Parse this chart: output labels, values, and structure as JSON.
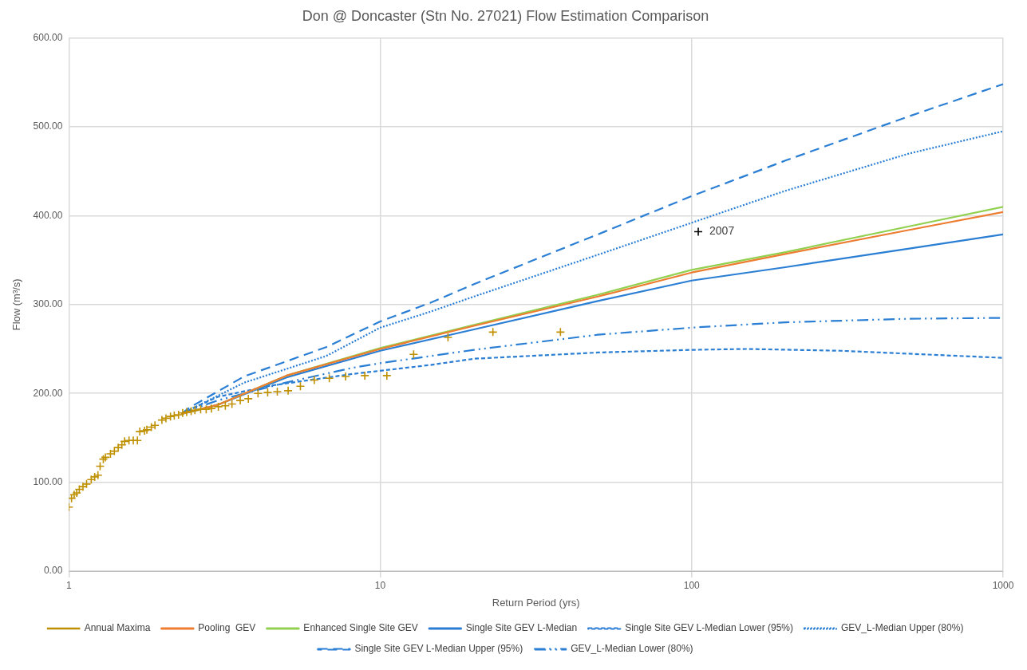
{
  "chart_data": {
    "type": "line",
    "title": "Don @ Doncaster (Stn No. 27021) Flow Estimation Comparison",
    "xlabel": "Return Period (yrs)",
    "ylabel": "Flow (m³/s)",
    "log": "x",
    "grid": true,
    "legend": "bottom",
    "marker": "none",
    "xlim": [
      1,
      1000
    ],
    "xticks": [
      1,
      10,
      100,
      1000
    ],
    "ylim": [
      0,
      600
    ],
    "yticks": [
      {
        "value": 0,
        "label": "0.00"
      },
      {
        "value": 100,
        "label": "100.00"
      },
      {
        "value": 200,
        "label": "200.00"
      },
      {
        "value": 300,
        "label": "300.00"
      },
      {
        "value": 400,
        "label": "400.00"
      },
      {
        "value": 500,
        "label": "500.00"
      },
      {
        "value": 600,
        "label": "600.00"
      }
    ],
    "annotations": [
      {
        "text": "2007",
        "x": 105,
        "y": 382
      }
    ],
    "series": [
      {
        "name": "Pooling  GEV",
        "color": "#ed7d31",
        "line_style": "solid",
        "x": [
          2.3,
          3,
          5,
          10,
          20,
          50,
          100,
          200,
          500,
          1000
        ],
        "values": [
          177,
          187,
          220,
          250,
          276,
          309,
          336,
          357,
          384,
          404
        ]
      },
      {
        "name": "Enhanced Single Site GEV",
        "color": "#92d050",
        "line_style": "solid",
        "x": [
          2.3,
          3,
          5,
          10,
          20,
          50,
          100,
          200,
          500,
          1000
        ],
        "values": [
          177,
          187,
          220,
          251,
          277,
          311,
          339,
          359,
          388,
          410
        ]
      },
      {
        "name": "Single Site GEV L-Median",
        "color": "#2a7fd4",
        "line_style": "solid",
        "x": [
          2.3,
          3,
          5,
          10,
          20,
          50,
          100,
          200,
          500,
          1000
        ],
        "values": [
          177,
          187,
          218,
          248,
          272,
          304,
          327,
          342,
          363,
          379
        ]
      },
      {
        "name": "Single Site GEV L-Median Lower (95%)",
        "color": "#2a7fd4",
        "line_style": "dashed",
        "x": [
          2.3,
          2.6,
          3,
          4.5,
          8.2,
          14.5,
          20,
          50,
          100,
          150,
          300,
          1000
        ],
        "values": [
          177,
          186,
          196,
          209,
          222,
          232,
          239,
          246,
          249,
          250,
          248,
          240
        ]
      },
      {
        "name": "GEV_L-Median Upper (80%)",
        "color": "#2a7fd4",
        "line_style": "dotted",
        "x": [
          2.3,
          3.65,
          6.7,
          10,
          14.5,
          20,
          50,
          100,
          200,
          500,
          1000
        ],
        "values": [
          177,
          212,
          242,
          274,
          292,
          309,
          356,
          392,
          428,
          470,
          495
        ]
      },
      {
        "name": "Single Site GEV L-Median Upper (95%)",
        "color": "#2a7fd4",
        "line_style": "longdash",
        "x": [
          2.3,
          2.44,
          3.65,
          6.7,
          10,
          14.5,
          20,
          50,
          100,
          200,
          500,
          1000
        ],
        "values": [
          177,
          184,
          219,
          252,
          281,
          302,
          323,
          379,
          422,
          462,
          512,
          548
        ]
      },
      {
        "name": "GEV_L-Median Lower (80%)",
        "color": "#2a7fd4",
        "line_style": "dashdot",
        "x": [
          2.3,
          2.54,
          3,
          4.95,
          8.2,
          10,
          14.5,
          20,
          50,
          100,
          200,
          500,
          1000
        ],
        "values": [
          177,
          183,
          192,
          212,
          229,
          234,
          242,
          249,
          266,
          274,
          280,
          284,
          285
        ]
      },
      {
        "name": "Annual Maxima",
        "type": "scatter",
        "marker": "cross",
        "color": "#bf9000",
        "x": [
          1.0,
          1.02,
          1.04,
          1.06,
          1.08,
          1.11,
          1.14,
          1.18,
          1.21,
          1.24,
          1.26,
          1.29,
          1.31,
          1.36,
          1.4,
          1.44,
          1.48,
          1.51,
          1.56,
          1.61,
          1.66,
          1.69,
          1.75,
          1.78,
          1.84,
          1.89,
          1.99,
          2.05,
          2.12,
          2.18,
          2.25,
          2.32,
          2.39,
          2.47,
          2.54,
          2.65,
          2.76,
          2.87,
          3.02,
          3.18,
          3.34,
          3.55,
          3.77,
          4.05,
          4.35,
          4.67,
          5.06,
          5.54,
          6.14,
          6.86,
          7.74,
          8.92,
          10.5,
          12.8,
          16.5,
          23.0,
          37.9
        ],
        "values": [
          72,
          82,
          86,
          88,
          92,
          95,
          98,
          103,
          106,
          108,
          118,
          126,
          128,
          132,
          135,
          139,
          142,
          146,
          147,
          147,
          147,
          157,
          158,
          159,
          162,
          164,
          170,
          172,
          174,
          175,
          176,
          178,
          179,
          180,
          181,
          182,
          182,
          183,
          185,
          186,
          188,
          192,
          194,
          200,
          201,
          202,
          203,
          208,
          215,
          217,
          219,
          220,
          220,
          244,
          263,
          269,
          269
        ]
      },
      {
        "type": "scatter",
        "marker": "cross",
        "color": "#000000",
        "x": [
          105
        ],
        "values": [
          382
        ]
      }
    ]
  }
}
